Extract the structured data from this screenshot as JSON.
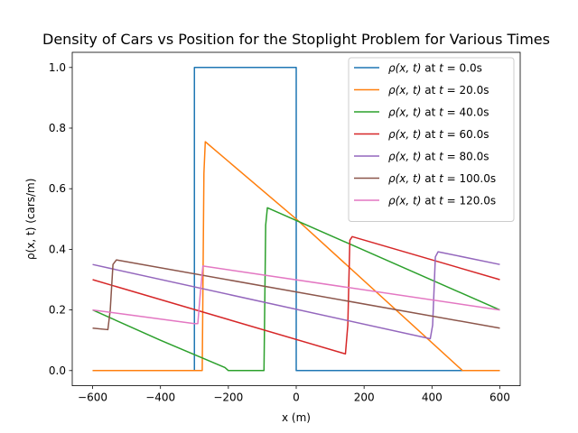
{
  "chart_data": {
    "type": "line",
    "title": "Density of Cars vs Position for the Stoplight Problem for Various Times",
    "xlabel": "x (m)",
    "ylabel": "ρ(x, t) (cars/m)",
    "xlim": [
      -660,
      660
    ],
    "ylim": [
      -0.05,
      1.05
    ],
    "xticks": [
      -600,
      -400,
      -200,
      0,
      200,
      400,
      600
    ],
    "xtick_labels": [
      "−600",
      "−400",
      "−200",
      "0",
      "200",
      "400",
      "600"
    ],
    "yticks": [
      0.0,
      0.2,
      0.4,
      0.6,
      0.8,
      1.0
    ],
    "ytick_labels": [
      "0.0",
      "0.2",
      "0.4",
      "0.6",
      "0.8",
      "1.0"
    ],
    "grid": false,
    "legend_position": "top-right",
    "series": [
      {
        "name": "ρ(x, t) at t = 0.0s",
        "legend_pre": "ρ(x, t)",
        "legend_mid": " at ",
        "legend_var": "t",
        "legend_post": " = 0.0s",
        "color": "#1f77b4",
        "points": [
          [
            -600,
            0
          ],
          [
            -300,
            0
          ],
          [
            -300,
            1.0
          ],
          [
            0,
            1.0
          ],
          [
            0,
            0
          ],
          [
            600,
            0
          ]
        ]
      },
      {
        "name": "ρ(x, t) at t = 20.0s",
        "legend_pre": "ρ(x, t)",
        "legend_mid": " at ",
        "legend_var": "t",
        "legend_post": " = 20.0s",
        "color": "#ff7f0e",
        "points": [
          [
            -600,
            0
          ],
          [
            -277,
            0
          ],
          [
            -272,
            0.65
          ],
          [
            -268,
            0.755
          ],
          [
            0,
            0.5
          ],
          [
            490,
            0.0
          ],
          [
            600,
            0
          ]
        ]
      },
      {
        "name": "ρ(x, t) at t = 40.0s",
        "legend_pre": "ρ(x, t)",
        "legend_mid": " at ",
        "legend_var": "t",
        "legend_post": " = 40.0s",
        "color": "#2ca02c",
        "points": [
          [
            -600,
            0.2
          ],
          [
            -400,
            0.1
          ],
          [
            -210,
            0.01
          ],
          [
            -200,
            0
          ],
          [
            -95,
            0
          ],
          [
            -90,
            0.48
          ],
          [
            -85,
            0.537
          ],
          [
            600,
            0.2
          ]
        ]
      },
      {
        "name": "ρ(x, t) at t = 60.0s",
        "legend_pre": "ρ(x, t)",
        "legend_mid": " at ",
        "legend_var": "t",
        "legend_post": " = 60.0s",
        "color": "#d62728",
        "points": [
          [
            -600,
            0.3
          ],
          [
            145,
            0.055
          ],
          [
            152,
            0.15
          ],
          [
            158,
            0.43
          ],
          [
            165,
            0.442
          ],
          [
            600,
            0.3
          ]
        ]
      },
      {
        "name": "ρ(x, t) at t = 80.0s",
        "legend_pre": "ρ(x, t)",
        "legend_mid": " at ",
        "legend_var": "t",
        "legend_post": " = 80.0s",
        "color": "#9467bd",
        "points": [
          [
            -600,
            0.35
          ],
          [
            395,
            0.105
          ],
          [
            402,
            0.15
          ],
          [
            410,
            0.375
          ],
          [
            418,
            0.392
          ],
          [
            600,
            0.35
          ]
        ]
      },
      {
        "name": "ρ(x, t) at t = 100.0s",
        "legend_pre": "ρ(x, t)",
        "legend_mid": " at ",
        "legend_var": "t",
        "legend_post": " = 100.0s",
        "color": "#8c564b",
        "points": [
          [
            -600,
            0.14
          ],
          [
            -555,
            0.135
          ],
          [
            -548,
            0.2
          ],
          [
            -540,
            0.35
          ],
          [
            -530,
            0.365
          ],
          [
            600,
            0.14
          ]
        ]
      },
      {
        "name": "ρ(x, t) at t = 120.0s",
        "legend_pre": "ρ(x, t)",
        "legend_mid": " at ",
        "legend_var": "t",
        "legend_post": " = 120.0s",
        "color": "#e377c2",
        "points": [
          [
            -600,
            0.2
          ],
          [
            -500,
            0.185
          ],
          [
            -300,
            0.155
          ],
          [
            -290,
            0.155
          ],
          [
            -283,
            0.25
          ],
          [
            -275,
            0.345
          ],
          [
            600,
            0.2
          ]
        ]
      }
    ]
  }
}
